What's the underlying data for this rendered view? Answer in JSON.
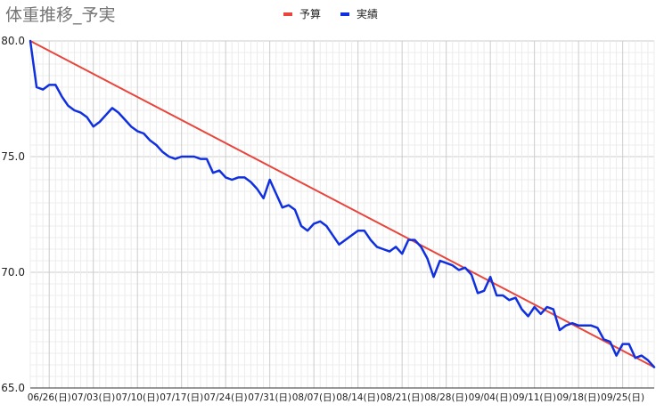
{
  "chart_data": {
    "type": "line",
    "title": "体重推移_予実",
    "xlabel": "",
    "ylabel": "",
    "ylim": [
      65,
      80
    ],
    "yticks": [
      "80.0",
      "75.0",
      "70.0",
      "65.0"
    ],
    "x_start": "06/23",
    "x_end": "09/30",
    "xtick_labels": [
      "06/26(日)",
      "07/03(日)",
      "07/10(日)",
      "07/17(日)",
      "07/24(日)",
      "07/31(日)",
      "08/07(日)",
      "08/14(日)",
      "08/21(日)",
      "08/28(日)",
      "09/04(日)",
      "09/11(日)",
      "09/18(日)",
      "09/25(日)"
    ],
    "grid": true,
    "legend_position": "top",
    "series": [
      {
        "name": "予算",
        "color": "#e8453c",
        "points": [
          [
            "06/23",
            80.0
          ],
          [
            "09/30",
            65.9
          ]
        ]
      },
      {
        "name": "実績",
        "color": "#1030e0",
        "points": [
          [
            "06/23",
            80.0
          ],
          [
            "06/24",
            78.0
          ],
          [
            "06/25",
            77.9
          ],
          [
            "06/26",
            78.1
          ],
          [
            "06/27",
            78.1
          ],
          [
            "06/28",
            77.6
          ],
          [
            "06/29",
            77.2
          ],
          [
            "06/30",
            77.0
          ],
          [
            "07/01",
            76.9
          ],
          [
            "07/02",
            76.7
          ],
          [
            "07/03",
            76.3
          ],
          [
            "07/04",
            76.5
          ],
          [
            "07/05",
            76.8
          ],
          [
            "07/06",
            77.1
          ],
          [
            "07/07",
            76.9
          ],
          [
            "07/08",
            76.6
          ],
          [
            "07/09",
            76.3
          ],
          [
            "07/10",
            76.1
          ],
          [
            "07/11",
            76.0
          ],
          [
            "07/12",
            75.7
          ],
          [
            "07/13",
            75.5
          ],
          [
            "07/14",
            75.2
          ],
          [
            "07/15",
            75.0
          ],
          [
            "07/16",
            74.9
          ],
          [
            "07/17",
            75.0
          ],
          [
            "07/18",
            75.0
          ],
          [
            "07/19",
            75.0
          ],
          [
            "07/20",
            74.9
          ],
          [
            "07/21",
            74.9
          ],
          [
            "07/22",
            74.3
          ],
          [
            "07/23",
            74.4
          ],
          [
            "07/24",
            74.1
          ],
          [
            "07/25",
            74.0
          ],
          [
            "07/26",
            74.1
          ],
          [
            "07/27",
            74.1
          ],
          [
            "07/28",
            73.9
          ],
          [
            "07/29",
            73.6
          ],
          [
            "07/30",
            73.2
          ],
          [
            "07/31",
            74.0
          ],
          [
            "08/01",
            73.4
          ],
          [
            "08/02",
            72.8
          ],
          [
            "08/03",
            72.9
          ],
          [
            "08/04",
            72.7
          ],
          [
            "08/05",
            72.0
          ],
          [
            "08/06",
            71.8
          ],
          [
            "08/07",
            72.1
          ],
          [
            "08/08",
            72.2
          ],
          [
            "08/09",
            72.0
          ],
          [
            "08/10",
            71.6
          ],
          [
            "08/11",
            71.2
          ],
          [
            "08/12",
            71.4
          ],
          [
            "08/13",
            71.6
          ],
          [
            "08/14",
            71.8
          ],
          [
            "08/15",
            71.8
          ],
          [
            "08/16",
            71.4
          ],
          [
            "08/17",
            71.1
          ],
          [
            "08/18",
            71.0
          ],
          [
            "08/19",
            70.9
          ],
          [
            "08/20",
            71.1
          ],
          [
            "08/21",
            70.8
          ],
          [
            "08/22",
            71.4
          ],
          [
            "08/23",
            71.4
          ],
          [
            "08/24",
            71.1
          ],
          [
            "08/25",
            70.6
          ],
          [
            "08/26",
            69.8
          ],
          [
            "08/27",
            70.5
          ],
          [
            "08/28",
            70.4
          ],
          [
            "08/29",
            70.3
          ],
          [
            "08/30",
            70.1
          ],
          [
            "08/31",
            70.2
          ],
          [
            "09/01",
            69.9
          ],
          [
            "09/02",
            69.1
          ],
          [
            "09/03",
            69.2
          ],
          [
            "09/04",
            69.8
          ],
          [
            "09/05",
            69.0
          ],
          [
            "09/06",
            69.0
          ],
          [
            "09/07",
            68.8
          ],
          [
            "09/08",
            68.9
          ],
          [
            "09/09",
            68.4
          ],
          [
            "09/10",
            68.1
          ],
          [
            "09/11",
            68.5
          ],
          [
            "09/12",
            68.2
          ],
          [
            "09/13",
            68.5
          ],
          [
            "09/14",
            68.4
          ],
          [
            "09/15",
            67.5
          ],
          [
            "09/16",
            67.7
          ],
          [
            "09/17",
            67.8
          ],
          [
            "09/18",
            67.7
          ],
          [
            "09/19",
            67.7
          ],
          [
            "09/20",
            67.7
          ],
          [
            "09/21",
            67.6
          ],
          [
            "09/22",
            67.1
          ],
          [
            "09/23",
            67.0
          ],
          [
            "09/24",
            66.4
          ],
          [
            "09/25",
            66.9
          ],
          [
            "09/26",
            66.9
          ],
          [
            "09/27",
            66.3
          ],
          [
            "09/28",
            66.4
          ],
          [
            "09/29",
            66.2
          ],
          [
            "09/30",
            65.9
          ]
        ]
      }
    ]
  }
}
